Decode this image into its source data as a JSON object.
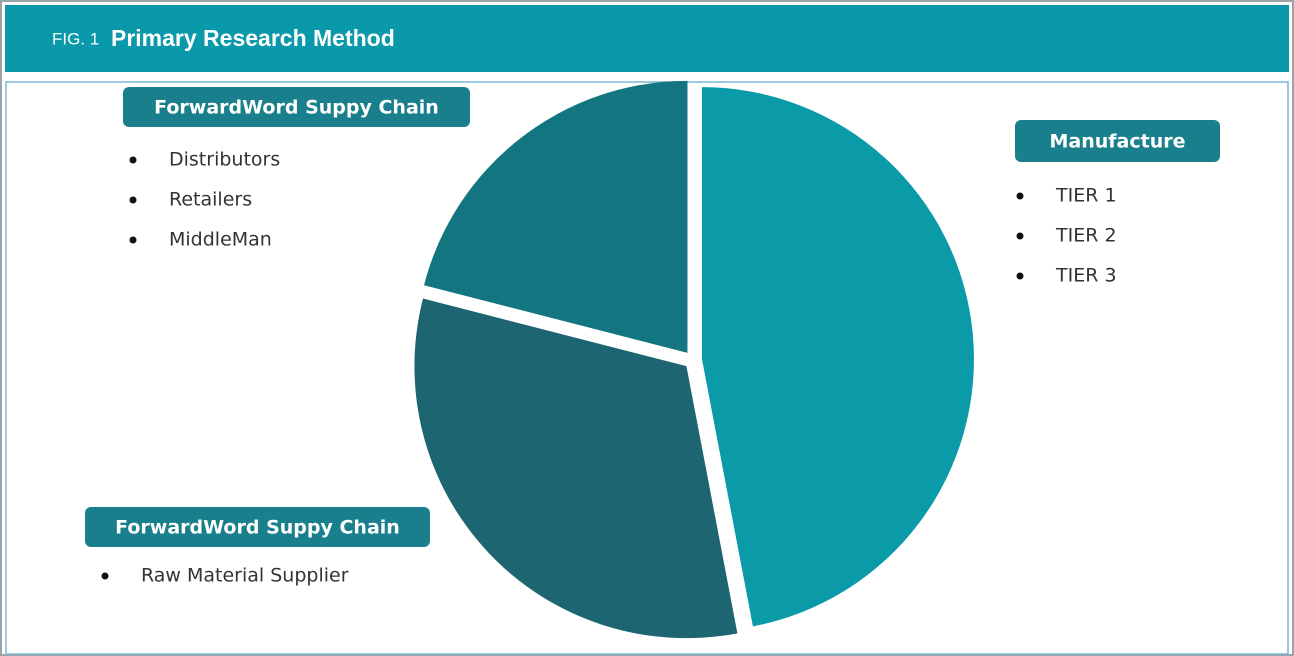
{
  "figure_label": "FIG. 1",
  "chart_data": {
    "type": "pie",
    "title": "Primary Research Method",
    "values": [
      47,
      32,
      21
    ],
    "colors": [
      "#0a9aa8",
      "#1d6570",
      "#127580"
    ],
    "groups": [
      {
        "title": "Manufacture",
        "items": [
          "TIER 1",
          "TIER 2",
          "TIER 3"
        ]
      },
      {
        "title": "ForwardWord Suppy Chain",
        "items": [
          "Raw Material Supplier"
        ]
      },
      {
        "title": "ForwardWord Suppy Chain",
        "items": [
          "Distributors",
          "Retailers",
          "MiddleMan"
        ]
      }
    ]
  }
}
